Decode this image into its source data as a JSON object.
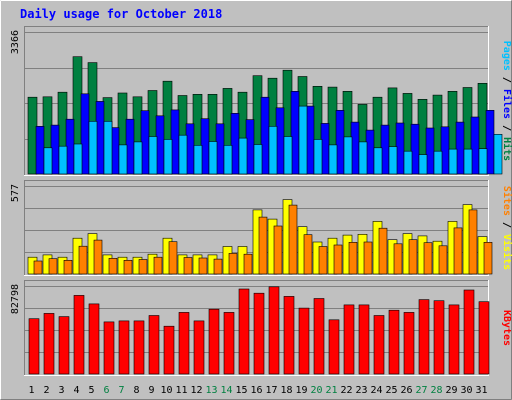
{
  "chart_data": {
    "type": "bar",
    "title": "Daily usage for October 2018",
    "categories": [
      "1",
      "2",
      "3",
      "4",
      "5",
      "6",
      "7",
      "8",
      "9",
      "10",
      "11",
      "12",
      "13",
      "14",
      "15",
      "16",
      "17",
      "18",
      "19",
      "20",
      "21",
      "22",
      "23",
      "24",
      "25",
      "26",
      "27",
      "28",
      "29",
      "30",
      "31"
    ],
    "weekend_days": [
      "6",
      "7",
      "13",
      "14",
      "20",
      "21",
      "27",
      "28"
    ],
    "panels": [
      {
        "id": "hits-files-pages",
        "ymax": 3366,
        "ymax_label": "3366",
        "side_label": [
          "Pages",
          "Files",
          "Hits"
        ],
        "series": [
          {
            "name": "Hits",
            "color": "#008040",
            "values": [
              1820,
              1830,
              1940,
              2780,
              2640,
              1810,
              1920,
              1830,
              1980,
              2200,
              1860,
              1890,
              1890,
              2030,
              1940,
              2330,
              2270,
              2460,
              2310,
              2080,
              2060,
              1960,
              1650,
              1820,
              2040,
              1910,
              1770,
              1870,
              1960,
              2050,
              2150
            ]
          },
          {
            "name": "Files",
            "color": "#0000ff",
            "values": [
              1130,
              1160,
              1300,
              1900,
              1720,
              1100,
              1300,
              1500,
              1380,
              1520,
              1190,
              1310,
              1190,
              1440,
              1290,
              1820,
              1570,
              1960,
              1610,
              1200,
              1510,
              1230,
              1040,
              1160,
              1210,
              1180,
              1090,
              1120,
              1230,
              1350,
              1510
            ]
          },
          {
            "name": "Pages",
            "color": "#00c0ff",
            "values": [
              620,
              660,
              710,
              1250,
              1250,
              690,
              760,
              890,
              820,
              920,
              680,
              770,
              680,
              850,
              700,
              1130,
              890,
              1610,
              820,
              690,
              880,
              760,
              620,
              650,
              540,
              460,
              540,
              590,
              590,
              600,
              940
            ]
          }
        ]
      },
      {
        "id": "visits-sites",
        "ymax": 577,
        "ymax_label": "577",
        "side_label": [
          "Sites",
          "Visits"
        ],
        "series": [
          {
            "name": "Visits",
            "color": "#ffff00",
            "values": [
              110,
              125,
              110,
              235,
              265,
              125,
              110,
              110,
              130,
              235,
              125,
              125,
              125,
              180,
              180,
              420,
              360,
              488,
              310,
              210,
              235,
              255,
              260,
              345,
              225,
              265,
              250,
              215,
              345,
              455,
              245
            ]
          },
          {
            "name": "Sites",
            "color": "#ff8000",
            "values": [
              85,
              100,
              90,
              182,
              222,
              103,
              90,
              95,
              110,
              212,
              108,
              105,
              98,
              135,
              130,
              373,
              315,
              452,
              258,
              180,
              190,
              208,
              210,
              300,
              198,
              225,
              205,
              185,
              302,
              420,
              208
            ]
          }
        ]
      },
      {
        "id": "kbytes",
        "ymax": 82798,
        "ymax_label": "82798",
        "side_label": [
          "KBytes"
        ],
        "series": [
          {
            "name": "KBytes",
            "color": "#ff0000",
            "values": [
              52000,
              57000,
              54000,
              74000,
              66000,
              49000,
              50000,
              50000,
              55000,
              45000,
              58000,
              50000,
              61000,
              58000,
              80000,
              76000,
              82000,
              73000,
              62000,
              71000,
              51000,
              65000,
              65000,
              55000,
              60000,
              58000,
              70000,
              69000,
              65000,
              79000,
              68000
            ]
          }
        ]
      }
    ]
  }
}
